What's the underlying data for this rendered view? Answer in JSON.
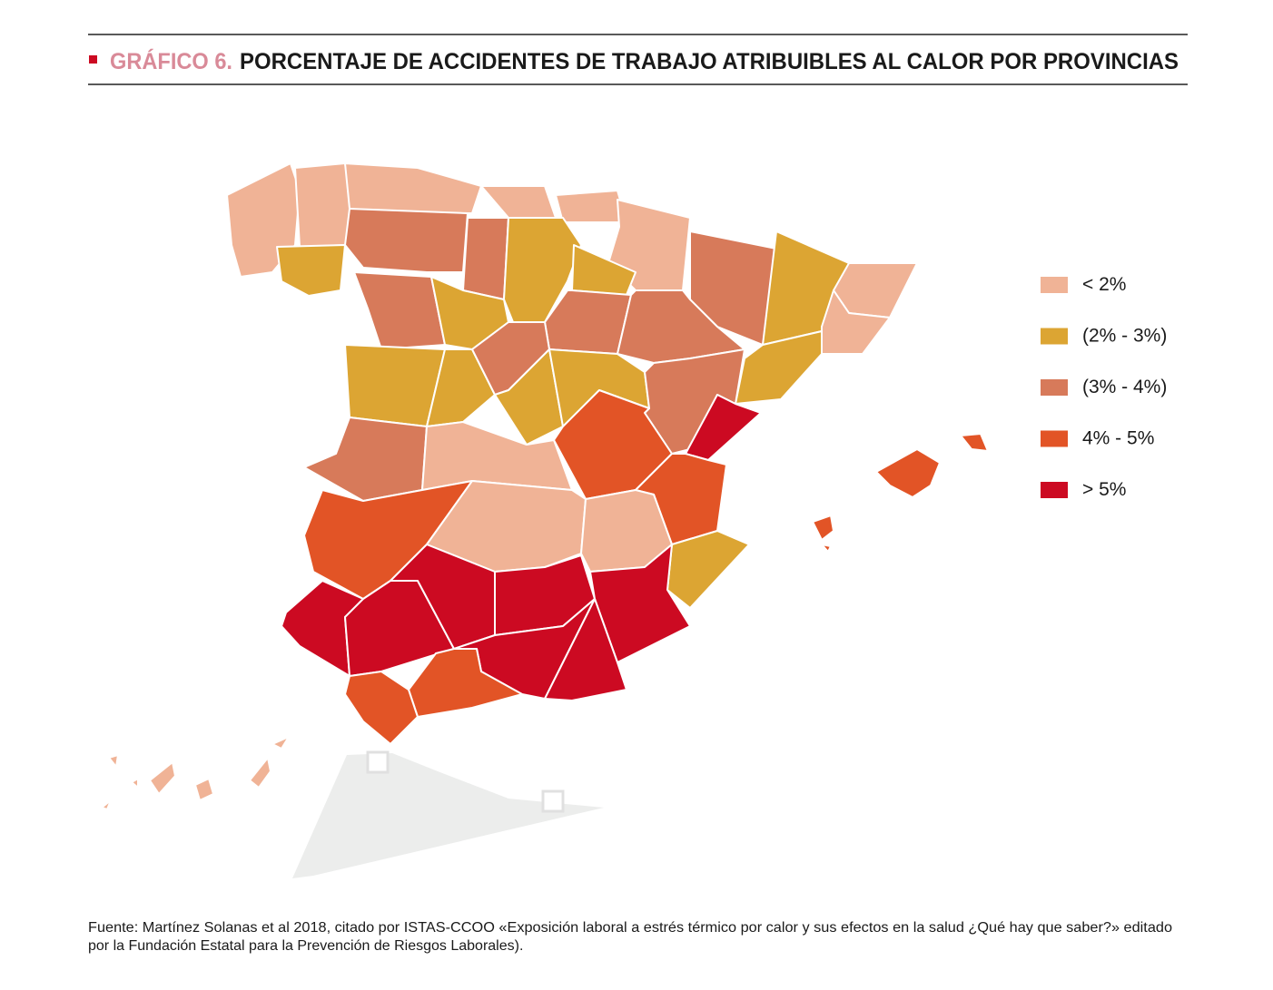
{
  "header": {
    "label": "GRÁFICO 6.",
    "title": "PORCENTAJE DE ACCIDENTES DE TRABAJO ATRIBUIBLES AL CALOR POR PROVINCIAS"
  },
  "legend": {
    "items": [
      {
        "label": "< 2%",
        "color": "#f0b396"
      },
      {
        "label": "(2% - 3%)",
        "color": "#dca533"
      },
      {
        "label": "(3% - 4%)",
        "color": "#d77a5a"
      },
      {
        "label": "4% - 5%",
        "color": "#e25426"
      },
      {
        "label": "> 5%",
        "color": "#cc0a22"
      }
    ]
  },
  "source": {
    "lines": [
      "Fuente: Martínez Solanas et al 2018, citado por ISTAS-CCOO «Exposición laboral a estrés térmico por calor y sus efectos en la salud ¿Qué hay que saber?» editado",
      "por la Fundación Estatal para la Prevención de Riesgos Laborales)."
    ]
  }
}
